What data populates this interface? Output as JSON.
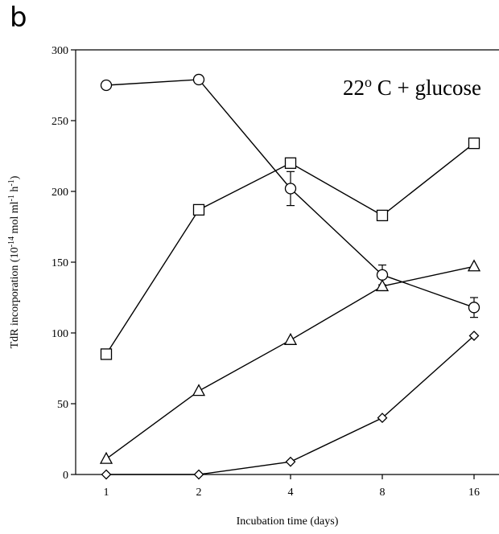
{
  "panel_label": "b",
  "chart_data": {
    "type": "line",
    "annotation": "22o C + glucose",
    "xlabel": "Incubation time (days)",
    "ylabel_parts": {
      "main": "TdR incorporation (10",
      "exp1": "-14",
      "mid": " mol ml",
      "exp2": "-1",
      "mid2": " h",
      "exp3": "-1",
      "end": ")"
    },
    "categories": [
      "1",
      "2",
      "4",
      "8",
      "16"
    ],
    "ylim": [
      0,
      300
    ],
    "yticks": [
      0,
      50,
      100,
      150,
      200,
      250,
      300
    ],
    "grid": false,
    "series": [
      {
        "marker": "circle",
        "values": [
          275,
          279,
          202,
          141,
          118
        ],
        "errors": [
          null,
          null,
          12,
          7,
          7
        ]
      },
      {
        "marker": "square",
        "values": [
          85,
          187,
          220,
          183,
          234
        ],
        "errors": [
          null,
          null,
          null,
          null,
          null
        ]
      },
      {
        "marker": "triangle",
        "values": [
          11,
          59,
          95,
          133,
          147
        ],
        "errors": [
          null,
          null,
          null,
          null,
          null
        ]
      },
      {
        "marker": "diamond",
        "values": [
          0,
          0,
          9,
          40,
          98
        ],
        "errors": [
          null,
          null,
          null,
          null,
          null
        ]
      }
    ]
  }
}
